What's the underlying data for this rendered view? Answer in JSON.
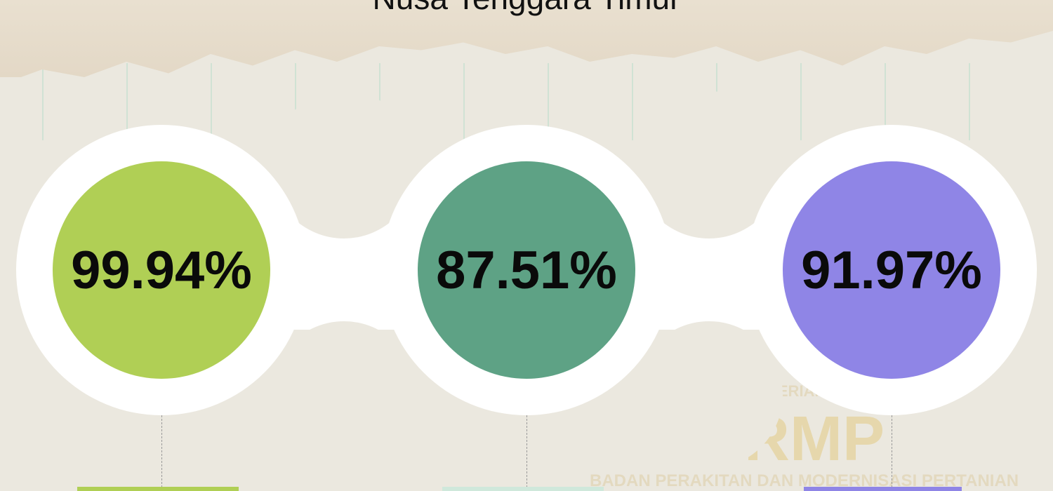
{
  "title": "Nusa Tenggara Timur",
  "stats": [
    {
      "value": "99.94%",
      "color": "#b0cf55"
    },
    {
      "value": "87.51%",
      "color": "#5ea285"
    },
    {
      "value": "91.97%",
      "color": "#8f85e6"
    }
  ],
  "watermark": {
    "line1": "KEMENTERIAN",
    "logo": "BRMP",
    "line2": "BADAN PERAKITAN DAN MODERNISASI PERTANIAN"
  }
}
